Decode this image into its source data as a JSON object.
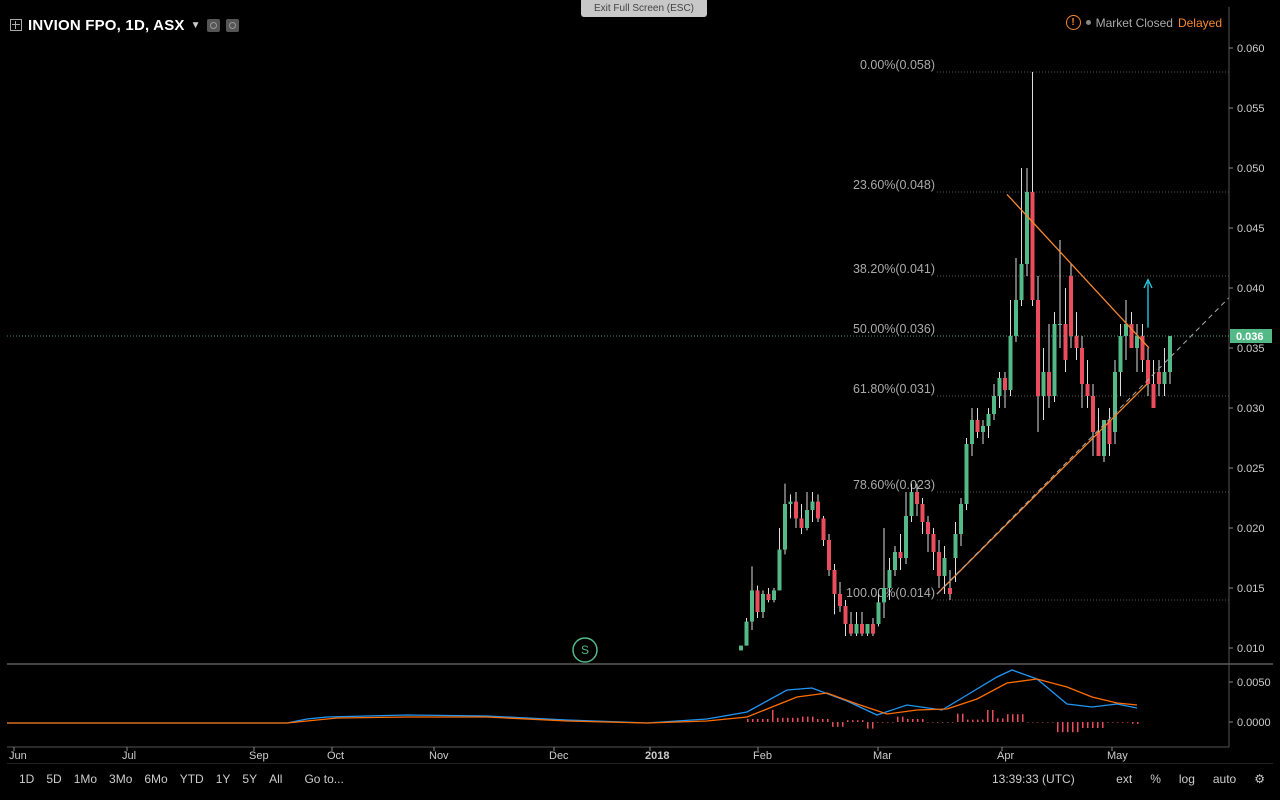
{
  "header": {
    "symbol": "INVION FPO, 1D, ASX",
    "fullscreen_label": "Exit Full Screen (ESC)",
    "status_icon": "!",
    "market_status": "Market Closed",
    "delay_status": "Delayed"
  },
  "bottom": {
    "periods": [
      "1D",
      "5D",
      "1Mo",
      "3Mo",
      "6Mo",
      "YTD",
      "1Y",
      "5Y",
      "All"
    ],
    "goto": "Go to...",
    "time": "13:39:33 (UTC)",
    "ext": "ext",
    "percent": "%",
    "log": "log",
    "auto": "auto"
  },
  "colors": {
    "up": "#53b987",
    "down": "#eb4d5c",
    "trend": "#f7882f",
    "macd": "#2196f3",
    "signal": "#ff6d00",
    "fib_label": "#aaaaaa"
  },
  "chart_data": {
    "type": "candlestick",
    "yaxis": {
      "ticks": [
        0.01,
        0.015,
        0.02,
        0.025,
        0.03,
        0.035,
        0.04,
        0.045,
        0.05,
        0.055,
        0.06
      ],
      "current": 0.036,
      "current_label": "0.036"
    },
    "xaxis": {
      "ticks": [
        "Jun",
        "Jul",
        "Sep",
        "Oct",
        "Nov",
        "Dec",
        "2018",
        "Feb",
        "Mar",
        "Apr",
        "May"
      ]
    },
    "fib_levels": [
      {
        "label": "0.00%(0.058)",
        "value": 0.058
      },
      {
        "label": "23.60%(0.048)",
        "value": 0.048
      },
      {
        "label": "38.20%(0.041)",
        "value": 0.041
      },
      {
        "label": "50.00%(0.036)",
        "value": 0.036
      },
      {
        "label": "61.80%(0.031)",
        "value": 0.031
      },
      {
        "label": "78.60%(0.023)",
        "value": 0.023
      },
      {
        "label": "100.00%(0.014)",
        "value": 0.014
      }
    ],
    "candles": [
      [
        0.0098,
        0.0102,
        0.0098,
        0.0102
      ],
      [
        0.0102,
        0.0125,
        0.0102,
        0.0122
      ],
      [
        0.0122,
        0.0168,
        0.0115,
        0.0148
      ],
      [
        0.0148,
        0.0152,
        0.0125,
        0.013
      ],
      [
        0.013,
        0.0148,
        0.0125,
        0.0145
      ],
      [
        0.0145,
        0.015,
        0.0138,
        0.014
      ],
      [
        0.014,
        0.015,
        0.0138,
        0.0148
      ],
      [
        0.0148,
        0.02,
        0.0148,
        0.0182
      ],
      [
        0.0182,
        0.0237,
        0.0178,
        0.022
      ],
      [
        0.022,
        0.0228,
        0.0208,
        0.0222
      ],
      [
        0.0222,
        0.023,
        0.02,
        0.0208
      ],
      [
        0.0208,
        0.022,
        0.0195,
        0.02
      ],
      [
        0.02,
        0.023,
        0.0198,
        0.0215
      ],
      [
        0.0215,
        0.023,
        0.0205,
        0.0222
      ],
      [
        0.0222,
        0.0228,
        0.0205,
        0.0208
      ],
      [
        0.0208,
        0.021,
        0.0185,
        0.019
      ],
      [
        0.019,
        0.0195,
        0.016,
        0.0165
      ],
      [
        0.0165,
        0.017,
        0.0128,
        0.0145
      ],
      [
        0.0145,
        0.0155,
        0.013,
        0.0135
      ],
      [
        0.0135,
        0.014,
        0.011,
        0.012
      ],
      [
        0.012,
        0.013,
        0.011,
        0.0112
      ],
      [
        0.0112,
        0.013,
        0.011,
        0.012
      ],
      [
        0.012,
        0.013,
        0.011,
        0.0112
      ],
      [
        0.0112,
        0.012,
        0.011,
        0.012
      ],
      [
        0.012,
        0.0125,
        0.011,
        0.0112
      ],
      [
        0.012,
        0.0145,
        0.0118,
        0.0138
      ],
      [
        0.0138,
        0.02,
        0.0125,
        0.015
      ],
      [
        0.015,
        0.0175,
        0.014,
        0.0165
      ],
      [
        0.0165,
        0.0185,
        0.016,
        0.018
      ],
      [
        0.018,
        0.0195,
        0.0165,
        0.0175
      ],
      [
        0.0175,
        0.023,
        0.017,
        0.021
      ],
      [
        0.021,
        0.0237,
        0.0205,
        0.023
      ],
      [
        0.023,
        0.0237,
        0.021,
        0.022
      ],
      [
        0.022,
        0.0225,
        0.0195,
        0.0205
      ],
      [
        0.0205,
        0.021,
        0.018,
        0.0195
      ],
      [
        0.0195,
        0.02,
        0.0165,
        0.018
      ],
      [
        0.018,
        0.019,
        0.015,
        0.016
      ],
      [
        0.016,
        0.0185,
        0.0145,
        0.0175
      ],
      [
        0.015,
        0.0165,
        0.014,
        0.0145
      ],
      [
        0.0175,
        0.0205,
        0.0155,
        0.0195
      ],
      [
        0.0195,
        0.0225,
        0.0185,
        0.022
      ],
      [
        0.022,
        0.0275,
        0.0215,
        0.027
      ],
      [
        0.027,
        0.03,
        0.026,
        0.029
      ],
      [
        0.029,
        0.03,
        0.0275,
        0.028
      ],
      [
        0.028,
        0.029,
        0.027,
        0.0285
      ],
      [
        0.0285,
        0.03,
        0.0275,
        0.0295
      ],
      [
        0.0295,
        0.032,
        0.029,
        0.031
      ],
      [
        0.031,
        0.033,
        0.03,
        0.0325
      ],
      [
        0.0325,
        0.033,
        0.03,
        0.0315
      ],
      [
        0.0315,
        0.039,
        0.031,
        0.036
      ],
      [
        0.036,
        0.0425,
        0.0355,
        0.039
      ],
      [
        0.039,
        0.05,
        0.0385,
        0.042
      ],
      [
        0.042,
        0.05,
        0.041,
        0.048
      ],
      [
        0.048,
        0.058,
        0.0385,
        0.039
      ],
      [
        0.039,
        0.041,
        0.028,
        0.031
      ],
      [
        0.031,
        0.035,
        0.029,
        0.033
      ],
      [
        0.033,
        0.037,
        0.03,
        0.031
      ],
      [
        0.031,
        0.038,
        0.0305,
        0.037
      ],
      [
        0.037,
        0.044,
        0.035,
        0.037
      ],
      [
        0.037,
        0.04,
        0.033,
        0.034
      ],
      [
        0.041,
        0.042,
        0.035,
        0.036
      ],
      [
        0.036,
        0.038,
        0.034,
        0.035
      ],
      [
        0.035,
        0.036,
        0.03,
        0.032
      ],
      [
        0.032,
        0.034,
        0.03,
        0.031
      ],
      [
        0.031,
        0.032,
        0.026,
        0.028
      ],
      [
        0.028,
        0.03,
        0.026,
        0.026
      ],
      [
        0.026,
        0.029,
        0.0255,
        0.029
      ],
      [
        0.029,
        0.03,
        0.026,
        0.027
      ],
      [
        0.028,
        0.034,
        0.027,
        0.033
      ],
      [
        0.033,
        0.037,
        0.031,
        0.036
      ],
      [
        0.036,
        0.039,
        0.034,
        0.037
      ],
      [
        0.037,
        0.038,
        0.035,
        0.035
      ],
      [
        0.035,
        0.037,
        0.033,
        0.036
      ],
      [
        0.036,
        0.037,
        0.033,
        0.034
      ],
      [
        0.034,
        0.035,
        0.031,
        0.032
      ],
      [
        0.032,
        0.034,
        0.03,
        0.03
      ],
      [
        0.033,
        0.034,
        0.031,
        0.032
      ],
      [
        0.032,
        0.035,
        0.031,
        0.033
      ],
      [
        0.033,
        0.036,
        0.032,
        0.036
      ]
    ],
    "macd_ticks": [
      0.0,
      0.005
    ],
    "macd_ticks_labels": [
      "0.0000",
      "0.0050"
    ]
  }
}
